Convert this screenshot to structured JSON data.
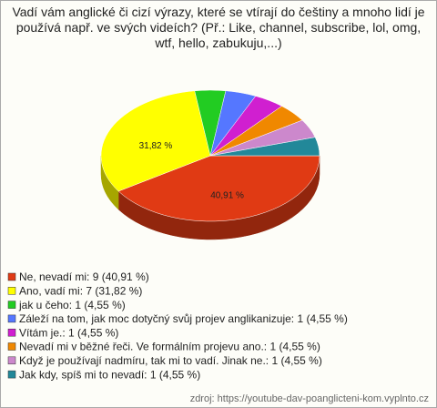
{
  "chart_data": {
    "type": "pie",
    "title": "Vadí vám anglické či cizí výrazy, které se vtírají do češtiny a mnoho lidí je používá např. ve svých videích? (Př.: Like, channel, subscribe, lol, omg, wtf, hello, zabukuju,...)",
    "categories": [
      "Ne, nevadí mi: 9 (40,91 %)",
      "Ano, vadí mi: 7 (31,82 %)",
      "jak u čeho: 1 (4,55 %)",
      "Záleží na tom, jak moc dotyčný svůj projev anglikanizuje: 1 (4,55 %)",
      "Vítám je.: 1 (4,55 %)",
      "Nevadí mi v běžné řeči. Ve formálním projevu ano.: 1 (4,55 %)",
      "Když je používají nadmíru, tak mi to vadí. Jinak ne.: 1 (4,55 %)",
      "Jak kdy, spíš mi to nevadí: 1 (4,55 %)"
    ],
    "values": [
      40.91,
      31.82,
      4.55,
      4.55,
      4.55,
      4.55,
      4.55,
      4.55
    ],
    "value_labels": [
      "40,91 %",
      "31,82 %",
      null,
      null,
      null,
      null,
      null,
      null
    ],
    "colors": [
      "#e03a14",
      "#ffff00",
      "#22cc22",
      "#5577ff",
      "#d01fd0",
      "#f08800",
      "#cc88cc",
      "#228899"
    ],
    "source": "zdroj: https://youtube-dav-poanglicteni-kom.vyplnto.cz"
  }
}
